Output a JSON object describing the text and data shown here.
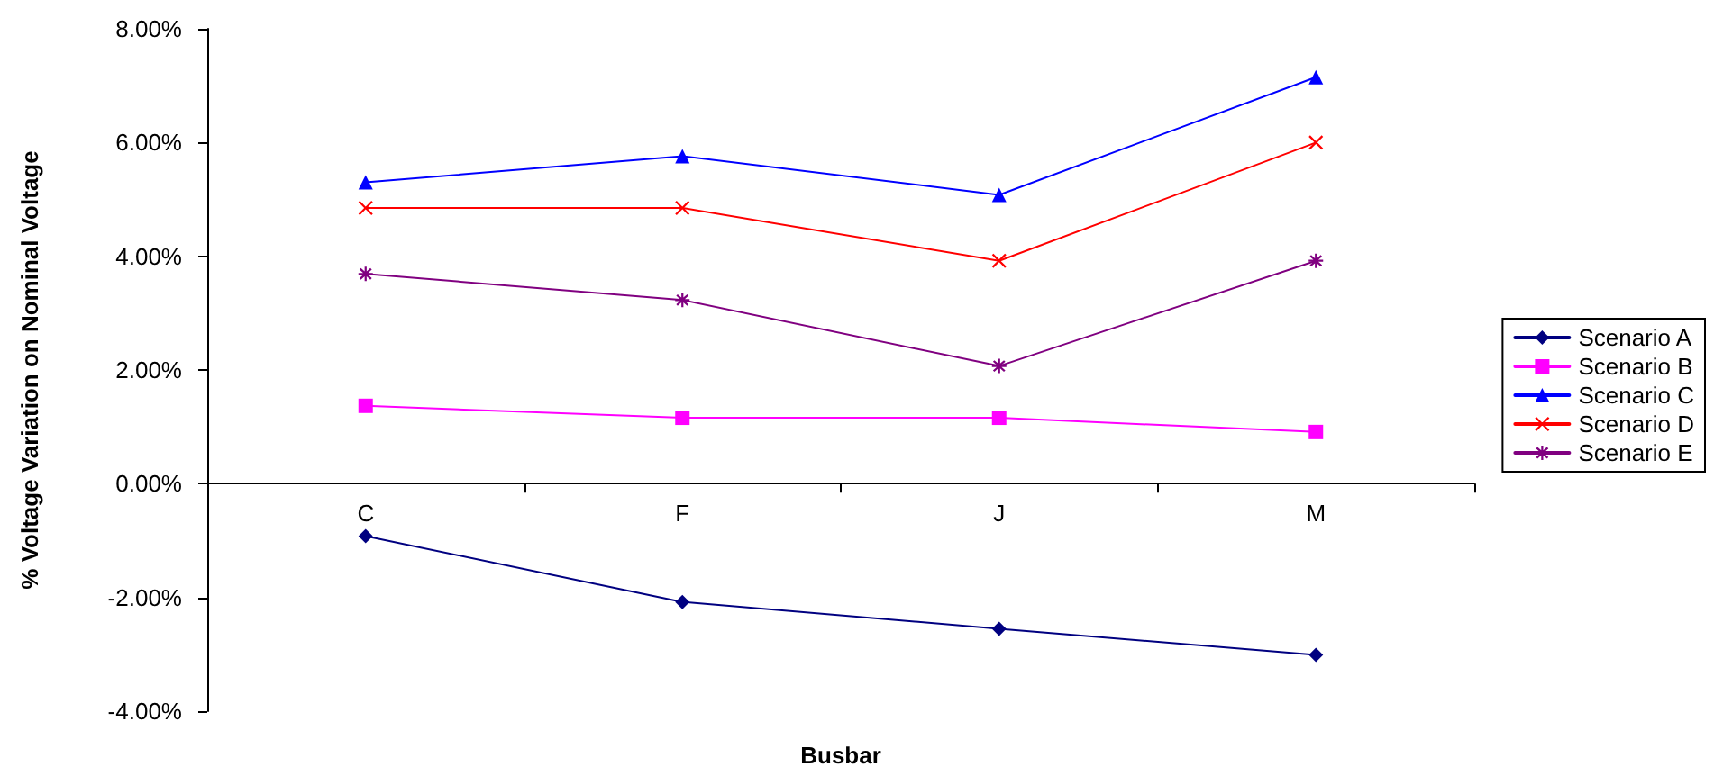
{
  "chart_data": {
    "type": "line",
    "xlabel": "Busbar",
    "ylabel": "% Voltage Variation on Nominal Voltage",
    "categories": [
      "C",
      "F",
      "J",
      "M"
    ],
    "series": [
      {
        "name": "Scenario A",
        "color": "#000080",
        "marker": "diamond",
        "values": [
          -0.92,
          -2.08,
          -2.55,
          -3.01
        ]
      },
      {
        "name": "Scenario B",
        "color": "#ff00ff",
        "marker": "square",
        "values": [
          1.37,
          1.16,
          1.16,
          0.91
        ]
      },
      {
        "name": "Scenario C",
        "color": "#0000ff",
        "marker": "triangle",
        "values": [
          5.3,
          5.76,
          5.08,
          7.15
        ]
      },
      {
        "name": "Scenario D",
        "color": "#ff0000",
        "marker": "cross",
        "values": [
          4.85,
          4.85,
          3.92,
          6.0
        ]
      },
      {
        "name": "Scenario E",
        "color": "#800080",
        "marker": "star",
        "values": [
          3.69,
          3.23,
          2.07,
          3.92
        ]
      }
    ],
    "ylim": [
      -4,
      8
    ],
    "yticks": [
      {
        "value": -4,
        "label": "-4.00%"
      },
      {
        "value": -2,
        "label": "-2.00%"
      },
      {
        "value": 0,
        "label": "0.00%"
      },
      {
        "value": 2,
        "label": "2.00%"
      },
      {
        "value": 4,
        "label": "4.00%"
      },
      {
        "value": 6,
        "label": "6.00%"
      },
      {
        "value": 8,
        "label": "8.00%"
      }
    ],
    "grid": false,
    "legend": "right",
    "line_style": "solid"
  }
}
